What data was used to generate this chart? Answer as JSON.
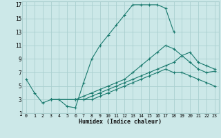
{
  "xlabel": "Humidex (Indice chaleur)",
  "bg_color": "#cce8e8",
  "grid_color": "#aacfcf",
  "line_color": "#1a7a6e",
  "xlim": [
    -0.5,
    23.5
  ],
  "ylim": [
    1,
    17.5
  ],
  "xticks": [
    0,
    1,
    2,
    3,
    4,
    5,
    6,
    7,
    8,
    9,
    10,
    11,
    12,
    13,
    14,
    15,
    16,
    17,
    18,
    19,
    20,
    21,
    22,
    23
  ],
  "yticks": [
    1,
    3,
    5,
    7,
    9,
    11,
    13,
    15,
    17
  ],
  "series": [
    {
      "x": [
        0,
        1,
        2,
        3,
        4,
        5,
        6,
        7,
        8,
        9,
        10,
        11,
        12,
        13,
        14,
        15,
        16,
        17,
        18
      ],
      "y": [
        6,
        4,
        2.5,
        3,
        3,
        2,
        1.8,
        5.5,
        9,
        11,
        12.5,
        14,
        15.5,
        17,
        17,
        17,
        17,
        16.5,
        13
      ]
    },
    {
      "x": [
        3,
        6,
        7,
        8,
        9,
        10,
        11,
        12,
        13,
        14,
        15,
        16,
        17,
        18,
        19,
        20,
        21,
        22,
        23
      ],
      "y": [
        3,
        3,
        3.5,
        4,
        4.5,
        5,
        5.5,
        6,
        7,
        8,
        9,
        10,
        11,
        10.5,
        9.5,
        8.5,
        7.5,
        7.0,
        7.2
      ]
    },
    {
      "x": [
        3,
        6,
        7,
        8,
        9,
        10,
        11,
        12,
        13,
        14,
        15,
        16,
        17,
        18,
        19,
        20,
        21,
        22,
        23
      ],
      "y": [
        3,
        3,
        3,
        3.5,
        4,
        4.5,
        5,
        5.5,
        6,
        6.5,
        7,
        7.5,
        8,
        8.5,
        9.5,
        10,
        8.5,
        8,
        7.5
      ]
    },
    {
      "x": [
        3,
        6,
        7,
        8,
        9,
        10,
        11,
        12,
        13,
        14,
        15,
        16,
        17,
        18,
        19,
        20,
        21,
        22,
        23
      ],
      "y": [
        3,
        3,
        3,
        3,
        3.5,
        4,
        4.5,
        5,
        5.5,
        6,
        6.5,
        7,
        7.5,
        7,
        7,
        6.5,
        6,
        5.5,
        5
      ]
    }
  ]
}
